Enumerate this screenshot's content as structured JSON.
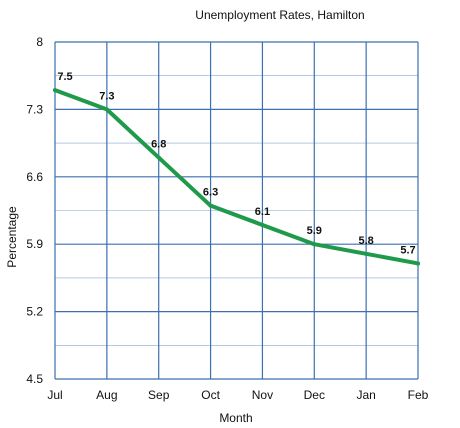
{
  "chart_data": {
    "type": "line",
    "title": "Unemployment Rates, Hamilton",
    "xlabel": "Month",
    "ylabel": "Percentage",
    "categories": [
      "Jul",
      "Aug",
      "Sep",
      "Oct",
      "Nov",
      "Dec",
      "Jan",
      "Feb"
    ],
    "series": [
      {
        "values": [
          7.5,
          7.3,
          6.8,
          6.3,
          6.1,
          5.9,
          5.8,
          5.7
        ]
      }
    ],
    "data_labels": [
      "7.5",
      "7.3",
      "6.8",
      "6.3",
      "6.1",
      "5.9",
      "5.8",
      "5.7"
    ],
    "ylim": [
      4.5,
      8
    ],
    "yticks": [
      4.5,
      5.2,
      5.9,
      6.6,
      7.3,
      8
    ],
    "ytick_labels": [
      "4.5",
      "5.2",
      "5.9",
      "6.6",
      "7.3",
      "8"
    ],
    "grid": true,
    "line_color": "#1f9a4a",
    "grid_color": "#3b6fb0"
  }
}
